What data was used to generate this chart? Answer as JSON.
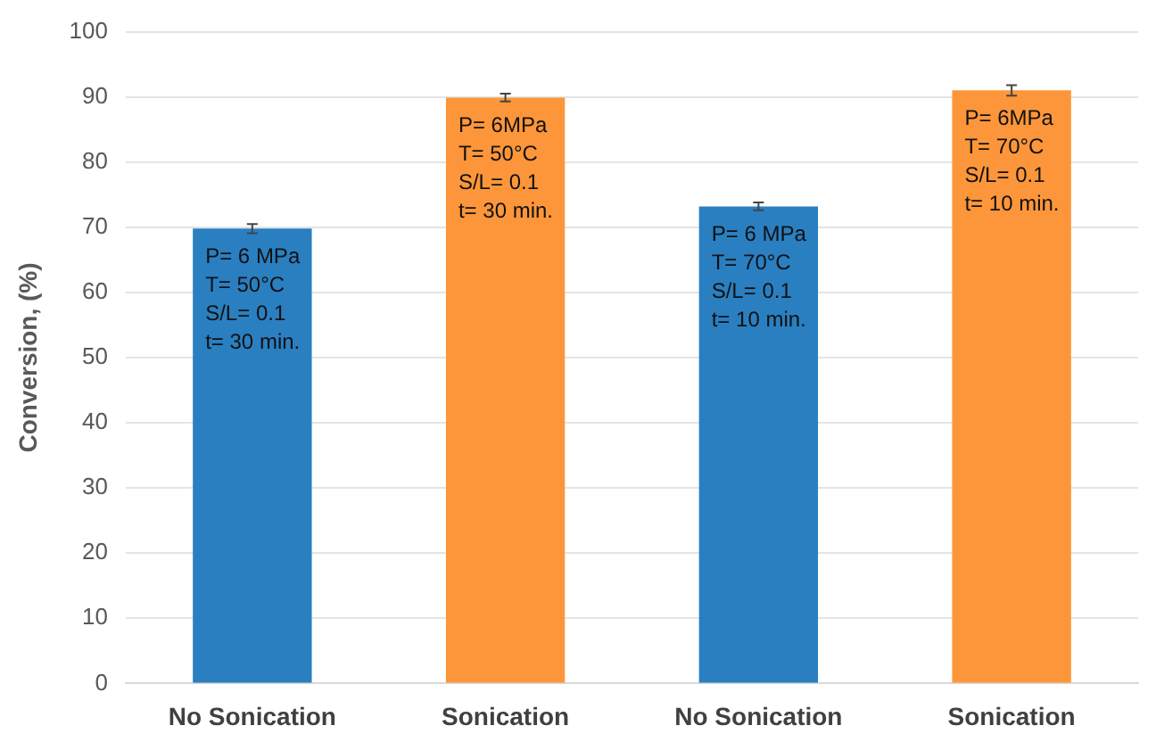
{
  "chart_data": {
    "type": "bar",
    "ylabel": "Conversion, (%)",
    "categories": [
      "No Sonication",
      "Sonication",
      "No Sonication",
      "Sonication"
    ],
    "values": [
      69.8,
      89.9,
      73.2,
      91.0
    ],
    "errors": [
      0.7,
      0.6,
      0.6,
      0.8
    ],
    "colors": [
      "#2a7fc1",
      "#fd963a",
      "#2a7fc1",
      "#fd963a"
    ],
    "annotations": [
      "P= 6 MPa\nT= 50°C\nS/L= 0.1\nt= 30 min.",
      "P= 6MPa\nT= 50°C\nS/L= 0.1\nt= 30 min.",
      "P= 6 MPa\nT= 70°C\nS/L= 0.1\nt= 10 min.",
      "P= 6MPa\nT= 70°C\nS/L= 0.1\nt= 10 min."
    ],
    "ylim": [
      0,
      100
    ],
    "yticks": [
      0,
      10,
      20,
      30,
      40,
      50,
      60,
      70,
      80,
      90,
      100
    ],
    "grid": "y",
    "legend": false
  }
}
